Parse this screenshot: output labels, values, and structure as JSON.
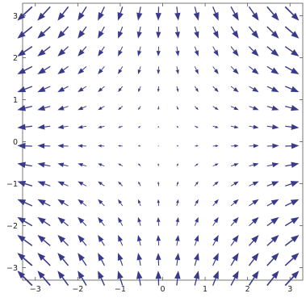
{
  "chart_data": {
    "type": "vector_field",
    "title": "",
    "xlabel": "",
    "ylabel": "",
    "xlim": [
      -3.3,
      3.3
    ],
    "ylim": [
      -3.3,
      3.3
    ],
    "field": {
      "u": "x",
      "v": "-y"
    },
    "grid_x": [
      -3.25,
      -2.8,
      -2.35,
      -1.9,
      -1.45,
      -1.0,
      -0.55,
      -0.1,
      0.35,
      0.8,
      1.25,
      1.7,
      2.15,
      2.6,
      3.05
    ],
    "grid_y": [
      -3.25,
      -2.8,
      -2.35,
      -1.9,
      -1.45,
      -1.0,
      -0.55,
      -0.1,
      0.35,
      0.8,
      1.25,
      1.7,
      2.15,
      2.6,
      3.05
    ],
    "x_ticks": [
      {
        "value": -3,
        "label": "−3"
      },
      {
        "value": -2,
        "label": "−2"
      },
      {
        "value": -1,
        "label": "−1"
      },
      {
        "value": 0,
        "label": "0"
      },
      {
        "value": 1,
        "label": "1"
      },
      {
        "value": 2,
        "label": "2"
      },
      {
        "value": 3,
        "label": "3"
      }
    ],
    "y_ticks": [
      {
        "value": -3,
        "label": "−3"
      },
      {
        "value": -2,
        "label": "−2"
      },
      {
        "value": -1,
        "label": "−1"
      },
      {
        "value": 0,
        "label": "0"
      },
      {
        "value": 1,
        "label": "1"
      },
      {
        "value": 2,
        "label": "2"
      },
      {
        "value": 3,
        "label": "3"
      }
    ],
    "arrow_color": "#3a3a8c",
    "frame_color": "#555555",
    "grid": false
  }
}
